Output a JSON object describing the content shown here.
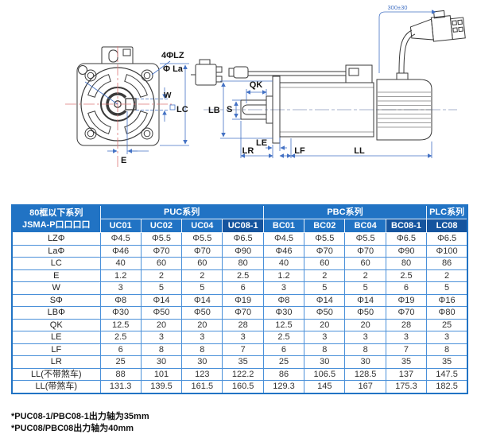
{
  "diagram": {
    "labels": {
      "bolt_holes": "4ΦLZ",
      "bolt_circle": "Φ La",
      "keyway_width": "W",
      "flange_size": "LC",
      "shaft_offset": "E",
      "key_length": "QK",
      "shaft_dia": "S",
      "pilot_dia": "LB",
      "le": "LE",
      "shaft_len": "LR",
      "lf": "LF",
      "body_len": "LL",
      "cable_len": "300±30"
    }
  },
  "table": {
    "corner_header": [
      "80框以下系列",
      "JSMA-P口口口口"
    ],
    "series": [
      {
        "label": "PUC系列",
        "span": 4
      },
      {
        "label": "PBC系列",
        "span": 4
      },
      {
        "label": "PLC系列",
        "span": 1
      }
    ],
    "models": [
      "UC01",
      "UC02",
      "UC04",
      "UC08-1",
      "BC01",
      "BC02",
      "BC04",
      "BC08-1",
      "LC08"
    ],
    "highlight_columns": [
      3,
      7,
      8
    ],
    "rows": [
      {
        "label": "LZΦ",
        "values": [
          "Φ4.5",
          "Φ5.5",
          "Φ5.5",
          "Φ6.5",
          "Φ4.5",
          "Φ5.5",
          "Φ5.5",
          "Φ6.5",
          "Φ6.5"
        ]
      },
      {
        "label": "LaΦ",
        "values": [
          "Φ46",
          "Φ70",
          "Φ70",
          "Φ90",
          "Φ46",
          "Φ70",
          "Φ70",
          "Φ90",
          "Φ100"
        ]
      },
      {
        "label": "LC",
        "values": [
          "40",
          "60",
          "60",
          "80",
          "40",
          "60",
          "60",
          "80",
          "86"
        ]
      },
      {
        "label": "E",
        "values": [
          "1.2",
          "2",
          "2",
          "2.5",
          "1.2",
          "2",
          "2",
          "2.5",
          "2"
        ]
      },
      {
        "label": "W",
        "values": [
          "3",
          "5",
          "5",
          "6",
          "3",
          "5",
          "5",
          "6",
          "5"
        ]
      },
      {
        "label": "SΦ",
        "values": [
          "Φ8",
          "Φ14",
          "Φ14",
          "Φ19",
          "Φ8",
          "Φ14",
          "Φ14",
          "Φ19",
          "Φ16"
        ]
      },
      {
        "label": "LBΦ",
        "values": [
          "Φ30",
          "Φ50",
          "Φ50",
          "Φ70",
          "Φ30",
          "Φ50",
          "Φ50",
          "Φ70",
          "Φ80"
        ]
      },
      {
        "label": "QK",
        "values": [
          "12.5",
          "20",
          "20",
          "28",
          "12.5",
          "20",
          "20",
          "28",
          "25"
        ]
      },
      {
        "label": "LE",
        "values": [
          "2.5",
          "3",
          "3",
          "3",
          "2.5",
          "3",
          "3",
          "3",
          "3"
        ]
      },
      {
        "label": "LF",
        "values": [
          "6",
          "8",
          "8",
          "7",
          "6",
          "8",
          "8",
          "7",
          "8"
        ]
      },
      {
        "label": "LR",
        "values": [
          "25",
          "30",
          "30",
          "35",
          "25",
          "30",
          "30",
          "35",
          "35"
        ]
      },
      {
        "label": "LL(不带煞车)",
        "values": [
          "88",
          "101",
          "123",
          "122.2",
          "86",
          "106.5",
          "128.5",
          "137",
          "147.5"
        ]
      },
      {
        "label": "LL(带煞车)",
        "values": [
          "131.3",
          "139.5",
          "161.5",
          "160.5",
          "129.3",
          "145",
          "167",
          "175.3",
          "182.5"
        ]
      }
    ]
  },
  "footnotes": [
    "*PUC08-1/PBC08-1出力轴为35mm",
    "*PUC08/PBC08出力轴为40mm"
  ],
  "colors": {
    "header_blue": "#2173c4",
    "header_dark": "#15549e",
    "grid_blue": "#4a90d9",
    "dim_blue": "#4472c4"
  }
}
